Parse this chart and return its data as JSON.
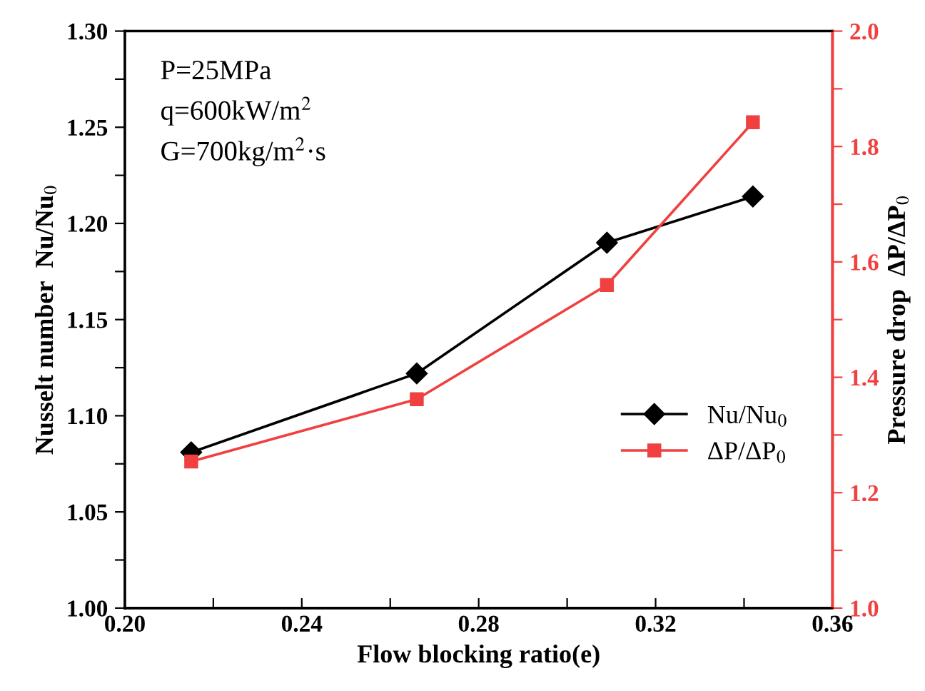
{
  "chart_data": {
    "type": "line",
    "x": [
      0.215,
      0.266,
      0.309,
      0.342
    ],
    "series": [
      {
        "name": "Nu/Nu$_{0}$",
        "color": "#000000",
        "values": [
          1.081,
          1.122,
          1.19,
          1.214
        ],
        "marker": "diamond"
      },
      {
        "name": "ΔP/ΔP$_{0}$",
        "color": "#f04040",
        "values": [
          1.254,
          1.362,
          1.56,
          1.842
        ],
        "marker": "square",
        "axis": "y2"
      }
    ],
    "xlabel": "Flow blocking ratio(e)",
    "ylabel": "Nusselt number  Nu/Nu$_{0}$",
    "y2label": "Pressure drop  ΔP/ΔP$_{0}$",
    "annotations": [
      "P=25MPa\nq=600kW/m$^{2}$\nG=700kg/m$^{2}$·s"
    ],
    "xlim": [
      0.2,
      0.36
    ],
    "xticks": [
      "0.20",
      {
        "value": 0.22,
        "label": null
      },
      0.24,
      {
        "value": 0.26,
        "label": null
      },
      0.28,
      {
        "value": 0.3,
        "label": null
      },
      0.32,
      {
        "value": 0.34,
        "label": null
      },
      0.36
    ],
    "ylim": [
      1.0,
      1.3
    ],
    "yticks": [
      {
        "value": 1.0,
        "label": "1.00"
      },
      {
        "value": 1.025,
        "label": null
      },
      1.05,
      {
        "value": 1.075,
        "label": null
      },
      {
        "value": 1.1,
        "label": "1.10"
      },
      {
        "value": 1.125,
        "label": null
      },
      1.15,
      {
        "value": 1.175,
        "label": null
      },
      {
        "value": 1.2,
        "label": "1.20"
      },
      {
        "value": 1.225,
        "label": null
      },
      1.25,
      {
        "value": 1.275,
        "label": null
      },
      {
        "value": 1.3,
        "label": "1.30"
      }
    ],
    "y2lim": [
      1.0,
      2.0
    ],
    "y2ticks": [
      {
        "value": 1.0,
        "label": "1.0"
      },
      {
        "value": 1.1,
        "label": null
      },
      1.2,
      {
        "value": 1.3,
        "label": null
      },
      1.4,
      {
        "value": 1.5,
        "label": null
      },
      1.6,
      {
        "value": 1.7,
        "label": null
      },
      1.8,
      {
        "value": 1.9,
        "label": null
      },
      {
        "value": 2.0,
        "label": "2.0"
      }
    ],
    "legend": "center right",
    "grid": false,
    "line_style": "solid"
  }
}
